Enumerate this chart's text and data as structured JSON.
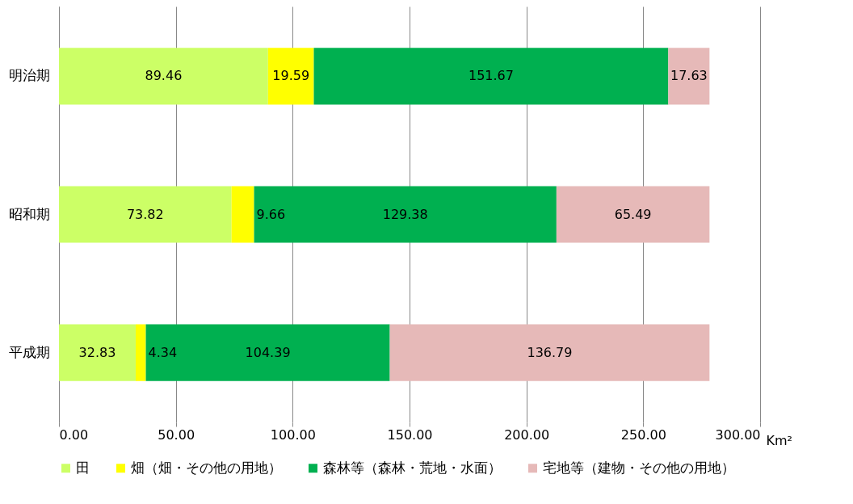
{
  "chart_data": {
    "type": "bar",
    "orientation": "horizontal",
    "stacked": true,
    "categories": [
      "明治期",
      "昭和期",
      "平成期"
    ],
    "series": [
      {
        "name": "田",
        "color": "#ccff66",
        "values": [
          89.46,
          73.82,
          32.83
        ]
      },
      {
        "name": "畑（畑・その他の用地）",
        "color": "#ffff00",
        "values": [
          19.59,
          9.66,
          4.34
        ]
      },
      {
        "name": "森林等（森林・荒地・水面）",
        "color": "#00b050",
        "values": [
          151.67,
          129.38,
          104.39
        ]
      },
      {
        "name": "宅地等（建物・その他の用地）",
        "color": "#e6b9b8",
        "values": [
          17.63,
          65.49,
          136.79
        ]
      }
    ],
    "xlabel": "Km²",
    "xlim": [
      0,
      300
    ],
    "xticks": [
      {
        "value": 0,
        "label": "0.00"
      },
      {
        "value": 50,
        "label": "50.00"
      },
      {
        "value": 100,
        "label": "100.00"
      },
      {
        "value": 150,
        "label": "150.00"
      },
      {
        "value": 200,
        "label": "200.00"
      },
      {
        "value": 250,
        "label": "250.00"
      },
      {
        "value": 300,
        "label": "300.00"
      }
    ],
    "grid": "x",
    "legend": "bottom",
    "data_labels": true
  }
}
